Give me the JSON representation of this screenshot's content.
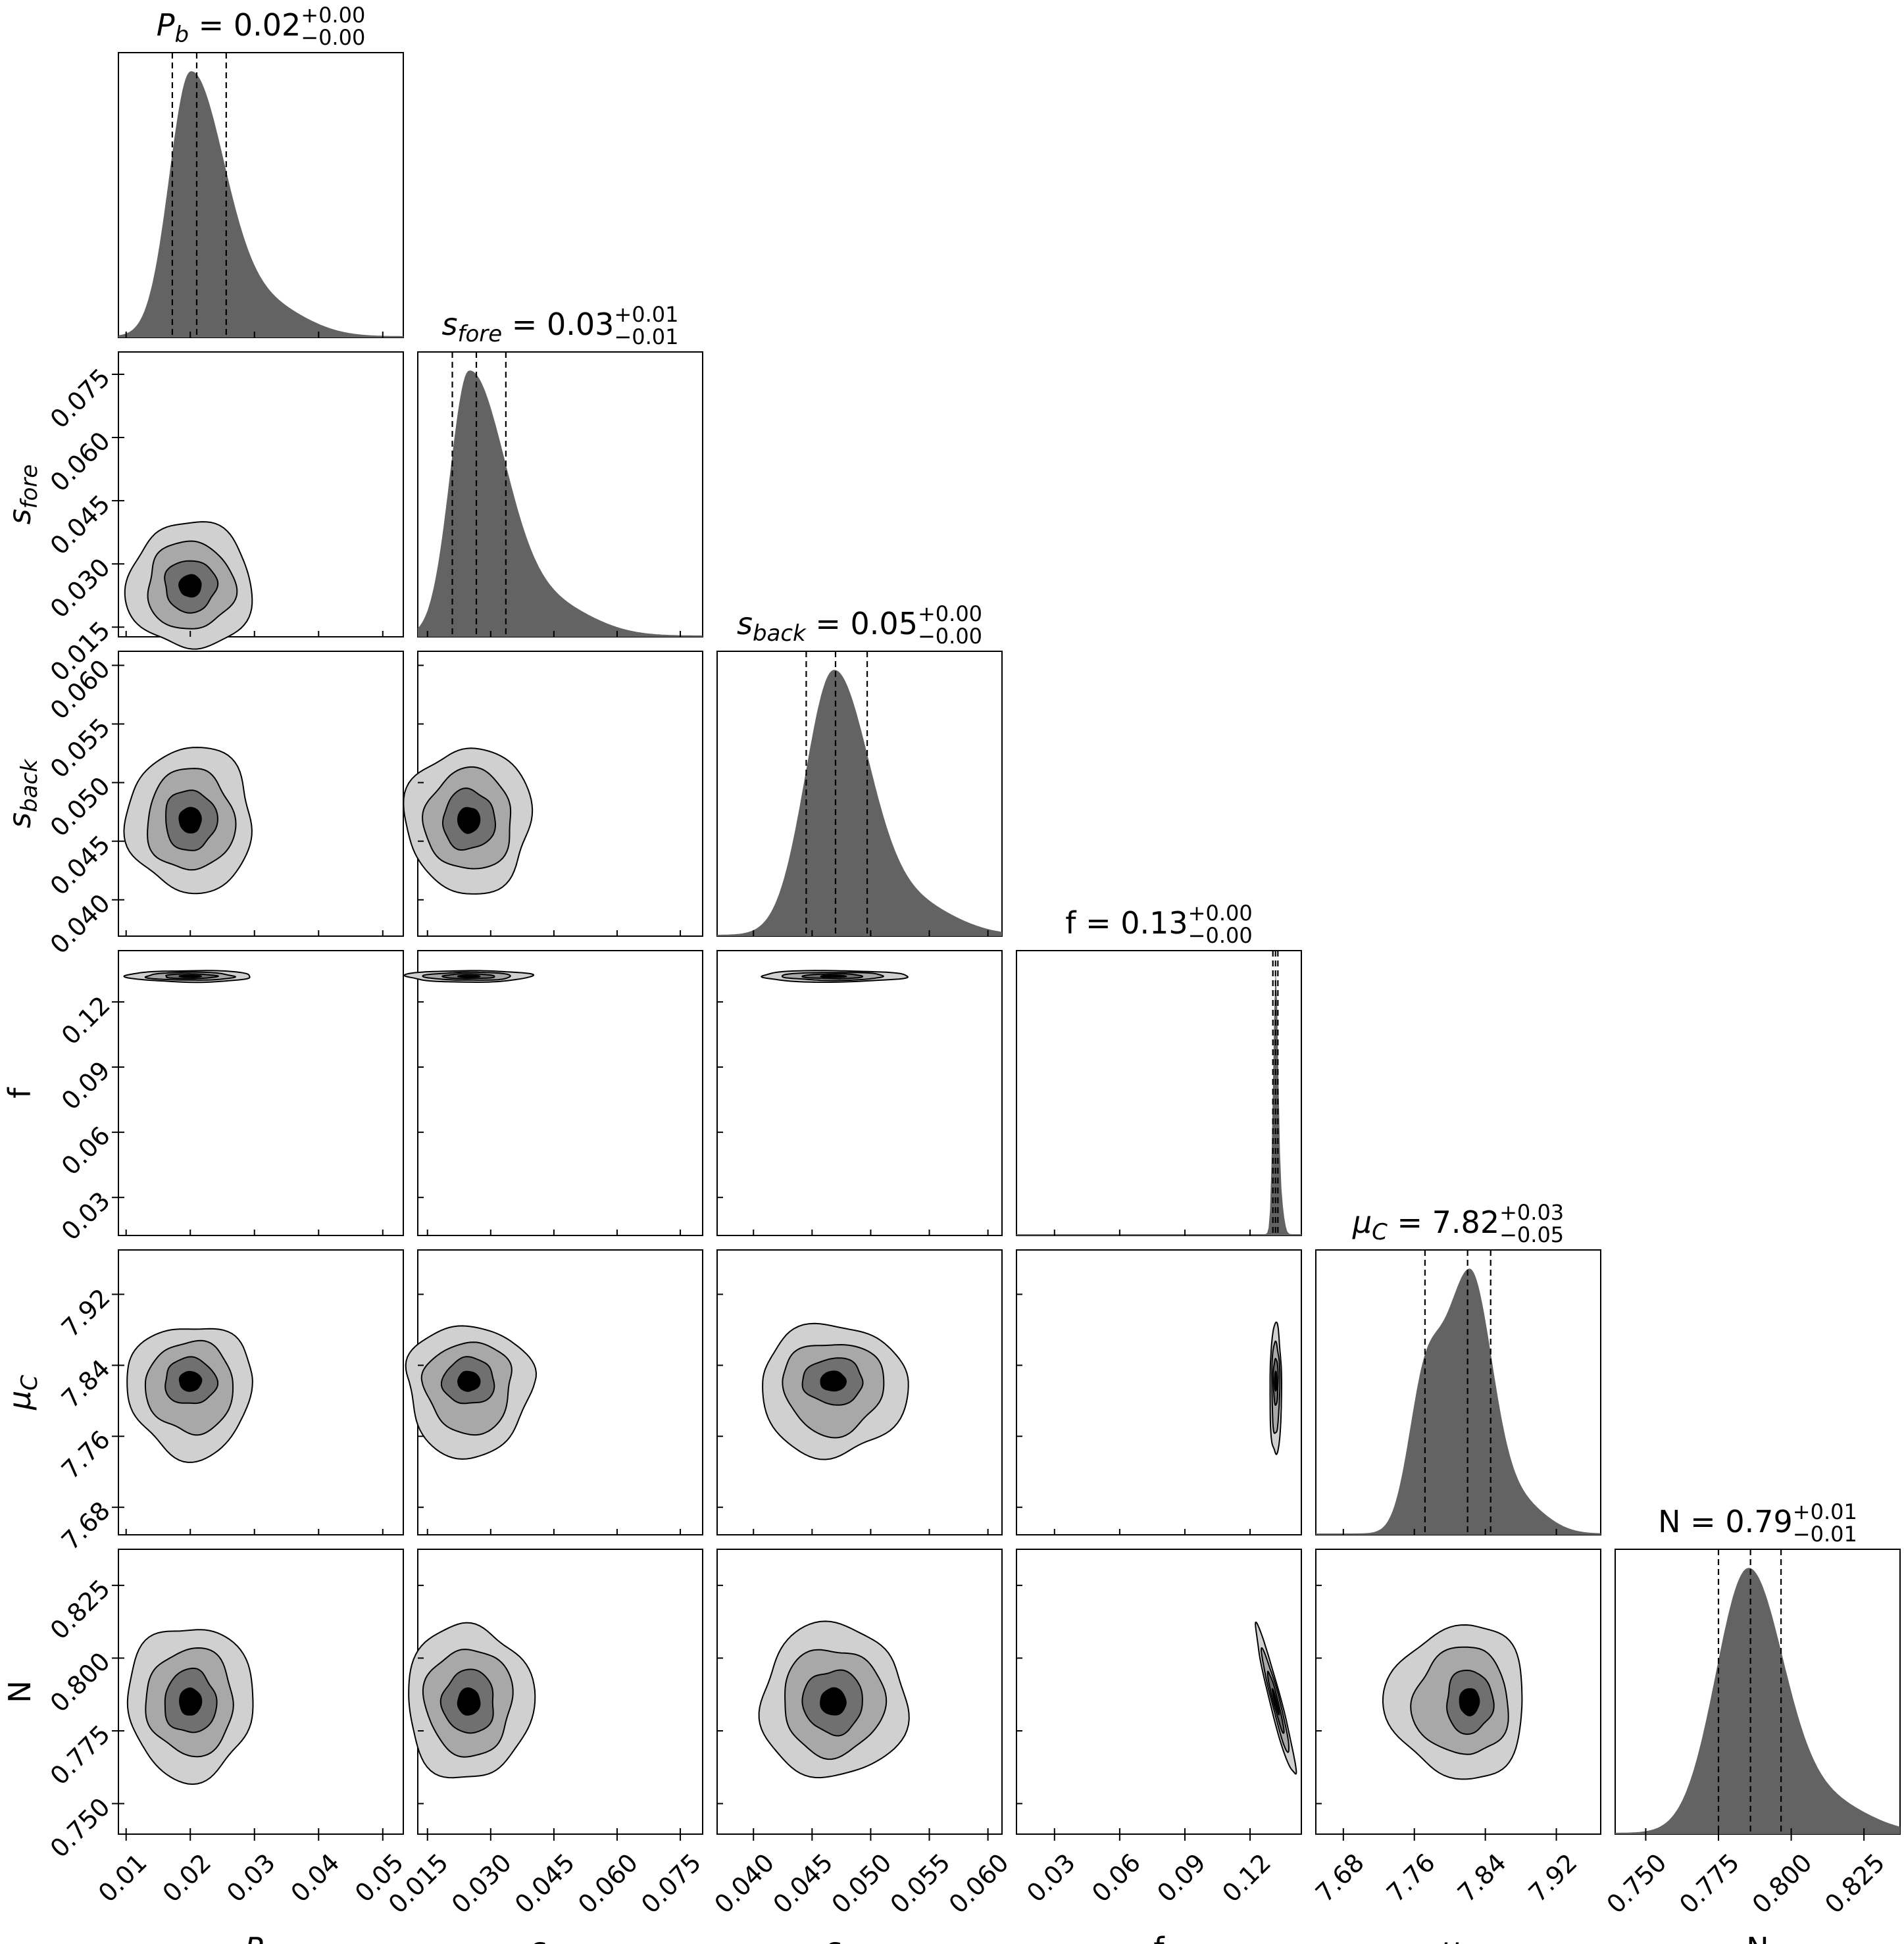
{
  "chart_data": {
    "type": "corner",
    "parameters": [
      {
        "key": "Pb",
        "title": {
          "sym": "P",
          "sub": "b",
          "value": "0.02",
          "plus": "+0.00",
          "minus": "−0.00"
        },
        "xlabel": {
          "sym": "P",
          "sub": "b"
        },
        "ylabel": null,
        "ticks": [
          "0.01",
          "0.02",
          "0.03",
          "0.04",
          "0.05"
        ],
        "tick_values": [
          0.01,
          0.02,
          0.03,
          0.04,
          0.05
        ],
        "range": [
          0.0088,
          0.0532
        ],
        "median": 0.021,
        "lo": 0.0172,
        "hi": 0.0256,
        "peak": 0.02,
        "sd_left": 0.0033,
        "sd_right": 0.0052
      },
      {
        "key": "s_fore",
        "title": {
          "sym": "s",
          "sub": "fore",
          "value": "0.03",
          "plus": "+0.01",
          "minus": "−0.01"
        },
        "xlabel": {
          "sym": "s",
          "sub": "fore"
        },
        "ylabel": {
          "sym": "s",
          "sub": "fore"
        },
        "ticks": [
          "0.015",
          "0.030",
          "0.045",
          "0.060",
          "0.075"
        ],
        "tick_values": [
          0.015,
          0.03,
          0.045,
          0.06,
          0.075
        ],
        "range": [
          0.0127,
          0.0803
        ],
        "median": 0.0266,
        "lo": 0.0209,
        "hi": 0.0336,
        "peak": 0.0248,
        "sd_left": 0.0045,
        "sd_right": 0.0085
      },
      {
        "key": "s_back",
        "title": {
          "sym": "s",
          "sub": "back",
          "value": "0.05",
          "plus": "+0.00",
          "minus": "−0.00"
        },
        "xlabel": {
          "sym": "s",
          "sub": "back"
        },
        "ylabel": {
          "sym": "s",
          "sub": "back"
        },
        "ticks": [
          "0.040",
          "0.045",
          "0.050",
          "0.055",
          "0.060"
        ],
        "tick_values": [
          0.04,
          0.045,
          0.05,
          0.055,
          0.06
        ],
        "range": [
          0.0369,
          0.0612
        ],
        "median": 0.047,
        "lo": 0.0445,
        "hi": 0.0497,
        "peak": 0.0468,
        "sd_left": 0.0024,
        "sd_right": 0.003
      },
      {
        "key": "f",
        "title": {
          "sym": "f",
          "sub": "",
          "value": "0.13",
          "plus": "+0.00",
          "minus": "−0.00"
        },
        "xlabel": {
          "sym": "f",
          "sub": ""
        },
        "ylabel": {
          "sym": "f",
          "sub": ""
        },
        "ticks": [
          "0.03",
          "0.06",
          "0.09",
          "0.12"
        ],
        "tick_values": [
          0.03,
          0.06,
          0.09,
          0.12
        ],
        "range": [
          0.0125,
          0.1436
        ],
        "median": 0.1317,
        "lo": 0.1305,
        "hi": 0.1328,
        "peak": 0.1318,
        "sd_left": 0.0012,
        "sd_right": 0.0011
      },
      {
        "key": "mu_C",
        "title": {
          "sym": "μ",
          "sub": "C",
          "value": "7.82",
          "plus": "+0.03",
          "minus": "−0.05"
        },
        "xlabel": {
          "sym": "μ",
          "sub": "C"
        },
        "ylabel": {
          "sym": "μ",
          "sub": "C"
        },
        "ticks": [
          "7.68",
          "7.76",
          "7.84",
          "7.92"
        ],
        "tick_values": [
          7.68,
          7.76,
          7.84,
          7.92
        ],
        "range": [
          7.649,
          7.97
        ],
        "median": 7.82,
        "lo": 7.772,
        "hi": 7.846,
        "peak": 7.822,
        "sd_left": 0.03,
        "sd_right": 0.025,
        "secondary_peak": 7.77
      },
      {
        "key": "N",
        "title": {
          "sym": "N",
          "sub": "",
          "value": "0.79",
          "plus": "+0.01",
          "minus": "−0.01"
        },
        "xlabel": {
          "sym": "N",
          "sub": ""
        },
        "ylabel": {
          "sym": "N",
          "sub": ""
        },
        "ticks": [
          "0.750",
          "0.775",
          "0.800",
          "0.825"
        ],
        "tick_values": [
          0.75,
          0.775,
          0.8,
          0.825
        ],
        "range": [
          0.7395,
          0.8374
        ],
        "median": 0.786,
        "lo": 0.775,
        "hi": 0.7965,
        "peak": 0.785,
        "sd_left": 0.011,
        "sd_right": 0.012
      }
    ],
    "marginal_style": {
      "fill": "#636363",
      "quantile_line": "#000000"
    },
    "contour_levels": [
      {
        "level": "outer",
        "fill": "#d0d0d0"
      },
      {
        "level": "mid",
        "fill": "#a8a8a8"
      },
      {
        "level": "inner",
        "fill": "#707070"
      },
      {
        "level": "core",
        "fill": "#000000"
      }
    ]
  }
}
